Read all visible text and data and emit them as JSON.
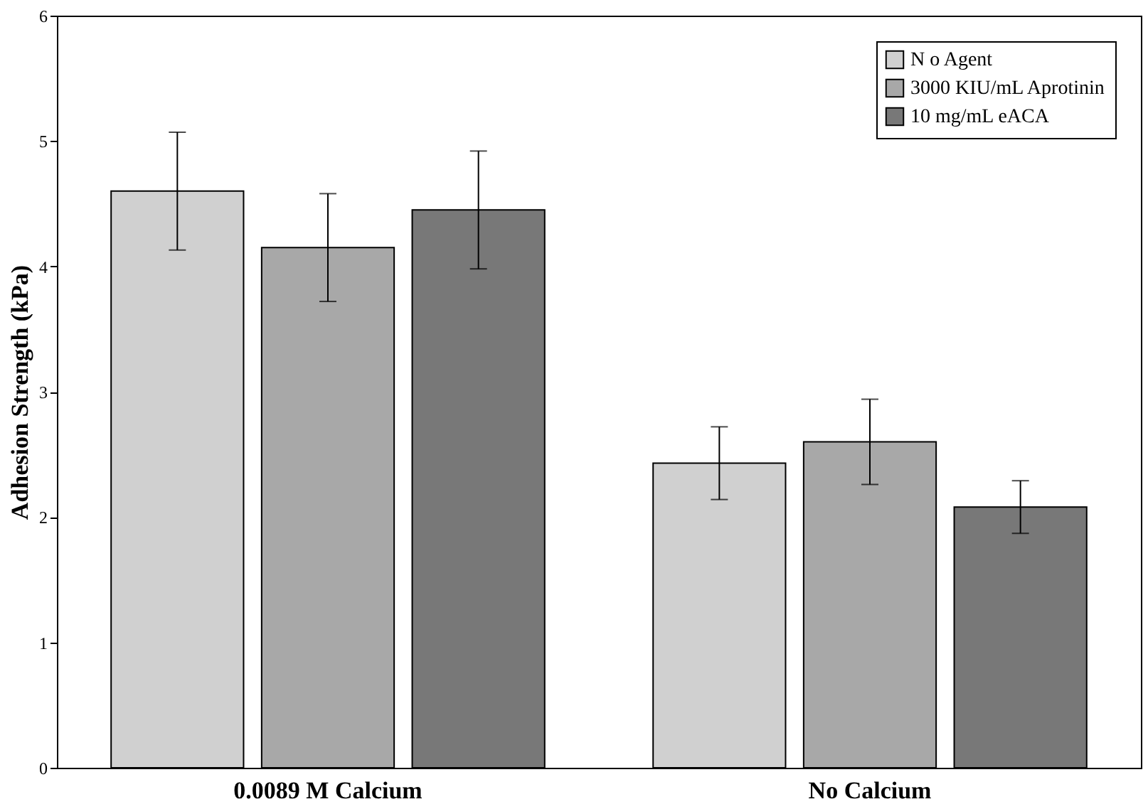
{
  "chart_data": {
    "type": "bar",
    "ylabel": "Adhesion Strength (kPa)",
    "categories": [
      "0.0089 M Calcium",
      "No Calcium"
    ],
    "series": [
      {
        "name": "N o Agent",
        "color": "#d0d0d0",
        "values": [
          4.6,
          2.43
        ],
        "errors": [
          0.47,
          0.29
        ]
      },
      {
        "name": "3000 KIU/mL Aprotinin",
        "color": "#a8a8a8",
        "values": [
          4.15,
          2.6
        ],
        "errors": [
          0.43,
          0.34
        ]
      },
      {
        "name": "10 mg/mL eACA",
        "color": "#787878",
        "values": [
          4.45,
          2.08
        ],
        "errors": [
          0.47,
          0.21
        ]
      }
    ],
    "ylim": [
      0,
      6
    ],
    "yticks": [
      0,
      1,
      2,
      3,
      4,
      5,
      6
    ],
    "grid": false,
    "legend": "top right"
  }
}
